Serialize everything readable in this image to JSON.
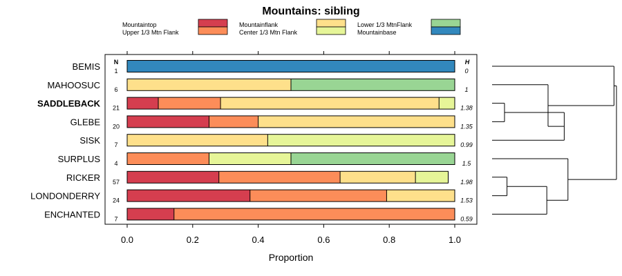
{
  "chart_data": {
    "type": "bar",
    "orientation": "horizontal",
    "stacked": true,
    "title": "Mountains: sibling",
    "xlabel": "Proportion",
    "ylabel": "",
    "xlim": [
      0,
      1
    ],
    "xticks": [
      "0.0",
      "0.2",
      "0.4",
      "0.6",
      "0.8",
      "1.0"
    ],
    "grid": false,
    "legend_position": "top",
    "n_header": "N",
    "h_header": "H",
    "highlighted_category": "SADDLEBACK",
    "categories": [
      "BEMIS",
      "MAHOOSUC",
      "SADDLEBACK",
      "GLEBE",
      "SISK",
      "SURPLUS",
      "RICKER",
      "LONDONDERRY",
      "ENCHANTED"
    ],
    "n": [
      "1",
      "6",
      "21",
      "20",
      "7",
      "4",
      "57",
      "24",
      "7"
    ],
    "h": [
      "0",
      "1",
      "1.38",
      "1.35",
      "0.99",
      "1.5",
      "1.98",
      "1.53",
      "0.59"
    ],
    "series": [
      {
        "name": "Mountaintop",
        "color": "#d53e4f",
        "values": [
          0,
          0,
          0.095,
          0.25,
          0,
          0,
          0.28,
          0.375,
          0.143
        ]
      },
      {
        "name": "Upper 1/3 Mtn Flank",
        "color": "#fc8d59",
        "values": [
          0,
          0,
          0.19,
          0.15,
          0,
          0.25,
          0.37,
          0.417,
          0.857
        ]
      },
      {
        "name": "Mountainflank",
        "color": "#fee08b",
        "values": [
          0,
          0.5,
          0.667,
          0.6,
          0.429,
          0,
          0.23,
          0.208,
          0
        ]
      },
      {
        "name": "Center 1/3 Mtn Flank",
        "color": "#e6f598",
        "values": [
          0,
          0,
          0.048,
          0,
          0.571,
          0.25,
          0.1,
          0,
          0
        ]
      },
      {
        "name": "Lower 1/3 MtnFlank",
        "color": "#99d594",
        "values": [
          0,
          0.5,
          0,
          0,
          0,
          0.5,
          0,
          0,
          0
        ]
      },
      {
        "name": "Mountainbase",
        "color": "#3288bd",
        "values": [
          1,
          0,
          0,
          0,
          0,
          0,
          0,
          0,
          0
        ]
      }
    ],
    "dendrogram": {
      "leaf_order": [
        "BEMIS",
        "MAHOOSUC",
        "SADDLEBACK",
        "GLEBE",
        "SISK",
        "SURPLUS",
        "RICKER",
        "LONDONDERRY",
        "ENCHANTED"
      ],
      "merges": [
        {
          "left": "SADDLEBACK",
          "right": "GLEBE",
          "height": 0.1
        },
        {
          "left": "RICKER",
          "right": "LONDONDERRY",
          "height": 0.12
        },
        {
          "left": "c1",
          "right": "SISK",
          "height": 0.58
        },
        {
          "left": "c2",
          "right": "ENCHANTED",
          "height": 0.44
        },
        {
          "left": "MAHOOSUC",
          "right": "c3",
          "height": 0.45
        },
        {
          "left": "SURPLUS",
          "right": "c4",
          "height": 0.61
        },
        {
          "left": "BEMIS",
          "right": "c5",
          "height": 0.98
        },
        {
          "left": "c7",
          "right": "c6",
          "height": 1.0
        }
      ]
    }
  }
}
